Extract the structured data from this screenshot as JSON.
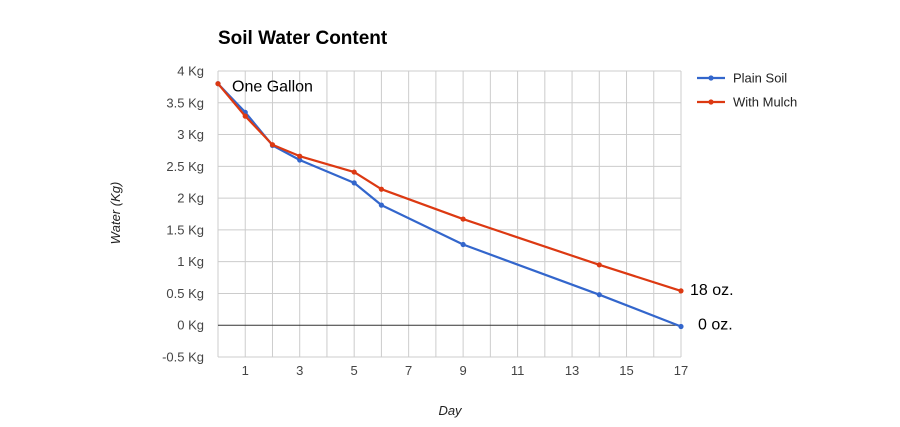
{
  "chart_data": {
    "type": "line",
    "title": "Soil Water Content",
    "xlabel": "Day",
    "ylabel": "Water (Kg)",
    "xlim": [
      0,
      17
    ],
    "ylim": [
      -0.5,
      4
    ],
    "x_ticks": [
      1,
      3,
      5,
      7,
      9,
      11,
      13,
      15,
      17
    ],
    "y_ticks": [
      {
        "value": 4,
        "label": "4 Kg"
      },
      {
        "value": 3.5,
        "label": "3.5 Kg"
      },
      {
        "value": 3,
        "label": "3 Kg"
      },
      {
        "value": 2.5,
        "label": "2.5 Kg"
      },
      {
        "value": 2,
        "label": "2 Kg"
      },
      {
        "value": 1.5,
        "label": "1.5 Kg"
      },
      {
        "value": 1,
        "label": "1 Kg"
      },
      {
        "value": 0.5,
        "label": "0.5 Kg"
      },
      {
        "value": 0,
        "label": "0 Kg"
      },
      {
        "value": -0.5,
        "label": "-0.5 Kg"
      }
    ],
    "grid": true,
    "legend_position": "right",
    "series": [
      {
        "name": "Plain Soil",
        "color": "#3366cc",
        "x": [
          0,
          1,
          2,
          3,
          5,
          6,
          9,
          14,
          17
        ],
        "y": [
          3.8,
          3.35,
          2.83,
          2.6,
          2.24,
          1.89,
          1.27,
          0.48,
          -0.02
        ]
      },
      {
        "name": "With Mulch",
        "color": "#dc3912",
        "x": [
          0,
          1,
          2,
          3,
          5,
          6,
          9,
          14,
          17
        ],
        "y": [
          3.8,
          3.29,
          2.84,
          2.66,
          2.41,
          2.14,
          1.67,
          0.95,
          0.54
        ]
      }
    ],
    "annotations": [
      {
        "text": "One Gallon",
        "at": "first point"
      },
      {
        "text": "18 oz.",
        "at": "last point of With Mulch"
      },
      {
        "text": "0 oz.",
        "at": "last point of Plain Soil"
      }
    ]
  }
}
